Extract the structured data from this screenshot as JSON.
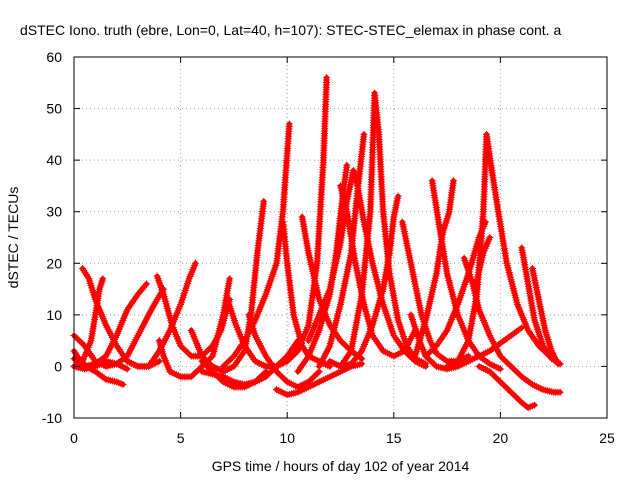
{
  "chart_data": {
    "type": "scatter",
    "title": "dSTEC Iono. truth (ebre, Lon=0, Lat=40, h=107): STEC-STEC_elemax in phase cont. a",
    "xlabel": "GPS time / hours of day 102 of year 2014",
    "ylabel": "dSTEC  / TECUs",
    "xlim": [
      0,
      25
    ],
    "ylim": [
      -10,
      60
    ],
    "xticks": [
      0,
      5,
      10,
      15,
      20,
      25
    ],
    "yticks": [
      -10,
      0,
      10,
      20,
      30,
      40,
      50,
      60
    ],
    "grid": true,
    "marker": "+",
    "color": "#ff0000",
    "series": [
      {
        "points": [
          [
            0.0,
            6
          ],
          [
            0.5,
            4
          ],
          [
            1.0,
            1
          ],
          [
            1.5,
            0
          ],
          [
            2.0,
            0.5
          ],
          [
            2.5,
            2
          ],
          [
            3.0,
            6
          ],
          [
            3.5,
            10
          ],
          [
            3.9,
            13
          ],
          [
            4.2,
            15
          ]
        ]
      },
      {
        "points": [
          [
            0.0,
            1.5
          ],
          [
            0.5,
            0
          ],
          [
            1.0,
            0.5
          ],
          [
            1.5,
            2
          ],
          [
            2.0,
            6
          ],
          [
            2.5,
            11
          ],
          [
            3.0,
            14
          ],
          [
            3.4,
            16
          ]
        ]
      },
      {
        "points": [
          [
            0.0,
            3
          ],
          [
            0.3,
            1
          ],
          [
            0.6,
            0
          ],
          [
            1.0,
            -1
          ],
          [
            1.5,
            -2.5
          ],
          [
            2.0,
            -3
          ],
          [
            2.3,
            -3.5
          ]
        ]
      },
      {
        "points": [
          [
            0.0,
            0
          ],
          [
            0.4,
            1
          ],
          [
            0.8,
            5
          ],
          [
            1.0,
            10
          ],
          [
            1.2,
            15
          ],
          [
            1.35,
            17
          ]
        ]
      },
      {
        "points": [
          [
            0.4,
            19
          ],
          [
            0.7,
            17
          ],
          [
            1.0,
            13
          ],
          [
            1.5,
            8
          ],
          [
            2.0,
            4
          ],
          [
            2.5,
            1
          ],
          [
            3.0,
            0
          ],
          [
            3.5,
            0
          ],
          [
            4.0,
            1
          ]
        ]
      },
      {
        "points": [
          [
            0.0,
            0
          ],
          [
            0.5,
            -0.5
          ],
          [
            1.0,
            0
          ],
          [
            1.5,
            1
          ],
          [
            2.0,
            0.5
          ],
          [
            2.5,
            -0.5
          ]
        ]
      },
      {
        "points": [
          [
            2.5,
            1
          ],
          [
            3.0,
            0
          ],
          [
            3.5,
            0
          ],
          [
            4.0,
            3
          ],
          [
            4.5,
            7
          ],
          [
            5.0,
            12
          ],
          [
            5.4,
            17
          ],
          [
            5.7,
            20
          ]
        ]
      },
      {
        "points": [
          [
            3.9,
            17.5
          ],
          [
            4.2,
            14
          ],
          [
            4.6,
            8
          ],
          [
            5.0,
            4
          ],
          [
            5.5,
            2
          ],
          [
            6.0,
            2
          ],
          [
            6.5,
            4
          ],
          [
            6.9,
            7
          ],
          [
            7.3,
            13
          ]
        ]
      },
      {
        "points": [
          [
            4.0,
            5
          ],
          [
            4.2,
            2
          ],
          [
            4.5,
            -1
          ],
          [
            5.0,
            -2
          ],
          [
            5.5,
            -2
          ],
          [
            6.0,
            0
          ],
          [
            6.5,
            2
          ],
          [
            7.0,
            10
          ],
          [
            7.3,
            17
          ]
        ]
      },
      {
        "points": [
          [
            5.5,
            7
          ],
          [
            6.0,
            2
          ],
          [
            6.5,
            0
          ],
          [
            7.0,
            -1
          ],
          [
            7.5,
            0
          ],
          [
            8.0,
            3
          ],
          [
            8.3,
            10
          ],
          [
            8.6,
            22
          ],
          [
            8.9,
            32
          ]
        ]
      },
      {
        "points": [
          [
            6.0,
            -1
          ],
          [
            6.5,
            -1.5
          ],
          [
            7.0,
            -2
          ],
          [
            7.5,
            -3
          ],
          [
            8.0,
            -3.5
          ],
          [
            8.5,
            -3
          ],
          [
            9.0,
            -1
          ]
        ]
      },
      {
        "points": [
          [
            6.0,
            1
          ],
          [
            6.5,
            -1
          ],
          [
            7.0,
            -3
          ],
          [
            7.5,
            -4
          ],
          [
            8.0,
            -4
          ],
          [
            8.5,
            -3
          ],
          [
            9.0,
            -2
          ],
          [
            9.5,
            0
          ],
          [
            10.0,
            2
          ],
          [
            10.5,
            5
          ]
        ]
      },
      {
        "points": [
          [
            7.2,
            13
          ],
          [
            7.6,
            8
          ],
          [
            8.0,
            4
          ],
          [
            8.5,
            1
          ],
          [
            9.0,
            0
          ],
          [
            9.5,
            0
          ],
          [
            10.0,
            2
          ],
          [
            10.5,
            4
          ]
        ]
      },
      {
        "points": [
          [
            7.0,
            0
          ],
          [
            7.5,
            2
          ],
          [
            8.0,
            5
          ],
          [
            8.5,
            9
          ],
          [
            9.0,
            14
          ],
          [
            9.5,
            20
          ],
          [
            9.8,
            30
          ],
          [
            10.1,
            47
          ]
        ]
      },
      {
        "points": [
          [
            8.2,
            10
          ],
          [
            8.5,
            6
          ],
          [
            9.0,
            2
          ],
          [
            9.5,
            -1
          ],
          [
            10.0,
            -3
          ],
          [
            10.5,
            -4
          ],
          [
            11.0,
            -3
          ],
          [
            11.5,
            -1
          ]
        ]
      },
      {
        "points": [
          [
            9.5,
            -4.5
          ],
          [
            10.0,
            -5.5
          ],
          [
            10.5,
            -5
          ],
          [
            11.0,
            -4
          ],
          [
            11.5,
            -3
          ],
          [
            12.0,
            -2
          ],
          [
            12.5,
            -1
          ],
          [
            13.0,
            0
          ],
          [
            13.5,
            0.5
          ]
        ]
      },
      {
        "points": [
          [
            9.8,
            28
          ],
          [
            10.0,
            20
          ],
          [
            10.3,
            10
          ],
          [
            10.7,
            4
          ],
          [
            11.0,
            2
          ],
          [
            11.5,
            1
          ],
          [
            12.0,
            0
          ]
        ]
      },
      {
        "points": [
          [
            9.0,
            0
          ],
          [
            9.5,
            0
          ],
          [
            10.0,
            1
          ],
          [
            10.5,
            3
          ],
          [
            11.0,
            8
          ],
          [
            11.4,
            20
          ],
          [
            11.7,
            40
          ],
          [
            11.85,
            56
          ]
        ]
      },
      {
        "points": [
          [
            10.5,
            -1
          ],
          [
            11.0,
            2
          ],
          [
            11.5,
            7
          ],
          [
            12.0,
            14
          ],
          [
            12.3,
            22
          ],
          [
            12.6,
            33
          ],
          [
            12.8,
            39
          ]
        ]
      },
      {
        "points": [
          [
            10.7,
            29
          ],
          [
            11.0,
            22
          ],
          [
            11.5,
            13
          ],
          [
            12.0,
            8
          ],
          [
            12.5,
            5
          ],
          [
            13.0,
            3
          ],
          [
            13.5,
            1.5
          ]
        ]
      },
      {
        "points": [
          [
            11.0,
            5
          ],
          [
            11.5,
            10
          ],
          [
            12.0,
            15
          ],
          [
            12.5,
            24
          ],
          [
            12.8,
            32
          ],
          [
            13.1,
            38
          ],
          [
            13.3,
            35
          ],
          [
            13.6,
            28
          ],
          [
            14.0,
            20
          ],
          [
            14.5,
            12
          ],
          [
            15.0,
            6
          ],
          [
            15.5,
            3
          ],
          [
            16.0,
            1
          ],
          [
            16.5,
            0
          ]
        ]
      },
      {
        "points": [
          [
            11.5,
            0
          ],
          [
            12.0,
            4
          ],
          [
            12.5,
            12
          ],
          [
            13.0,
            22
          ],
          [
            13.3,
            34
          ],
          [
            13.6,
            45
          ]
        ]
      },
      {
        "points": [
          [
            12.5,
            35
          ],
          [
            12.8,
            30
          ],
          [
            13.2,
            20
          ],
          [
            13.6,
            12
          ],
          [
            14.0,
            6
          ],
          [
            14.5,
            3
          ],
          [
            15.0,
            2
          ],
          [
            15.5,
            3
          ],
          [
            16.0,
            7
          ]
        ]
      },
      {
        "points": [
          [
            12.0,
            1
          ],
          [
            12.5,
            0
          ],
          [
            13.0,
            0.5
          ],
          [
            13.5,
            3
          ],
          [
            14.0,
            8
          ],
          [
            14.5,
            15
          ],
          [
            14.8,
            22
          ],
          [
            15.0,
            29
          ],
          [
            15.2,
            33
          ]
        ]
      },
      {
        "points": [
          [
            12.5,
            0
          ],
          [
            13.0,
            3
          ],
          [
            13.5,
            14
          ],
          [
            13.9,
            30
          ],
          [
            14.1,
            53
          ],
          [
            14.3,
            45
          ],
          [
            14.5,
            30
          ],
          [
            14.8,
            18
          ],
          [
            15.2,
            9
          ],
          [
            15.6,
            4
          ],
          [
            16.0,
            1.5
          ],
          [
            16.5,
            0.5
          ]
        ]
      },
      {
        "points": [
          [
            15.4,
            28
          ],
          [
            15.7,
            22
          ],
          [
            16.0,
            16
          ],
          [
            16.3,
            10
          ],
          [
            16.7,
            5
          ],
          [
            17.0,
            2.5
          ],
          [
            17.5,
            1
          ],
          [
            18.0,
            1
          ],
          [
            18.5,
            2
          ]
        ]
      },
      {
        "points": [
          [
            15.8,
            10
          ],
          [
            16.2,
            5
          ],
          [
            16.5,
            2
          ],
          [
            17.0,
            0
          ],
          [
            17.5,
            -0.5
          ],
          [
            18.0,
            0
          ],
          [
            18.5,
            1
          ],
          [
            19.0,
            2
          ],
          [
            19.5,
            3
          ],
          [
            20.0,
            4.5
          ],
          [
            20.5,
            6
          ],
          [
            21.0,
            7.5
          ]
        ]
      },
      {
        "points": [
          [
            16.0,
            2
          ],
          [
            16.5,
            9
          ],
          [
            17.0,
            18
          ],
          [
            17.3,
            26
          ],
          [
            17.6,
            30
          ],
          [
            17.8,
            36
          ]
        ]
      },
      {
        "points": [
          [
            16.8,
            36
          ],
          [
            17.1,
            28
          ],
          [
            17.5,
            18
          ],
          [
            18.0,
            10
          ],
          [
            18.5,
            5
          ],
          [
            19.0,
            2
          ],
          [
            19.5,
            0.5
          ],
          [
            20.0,
            -0.5
          ]
        ]
      },
      {
        "points": [
          [
            16.5,
            2
          ],
          [
            17.0,
            4
          ],
          [
            17.5,
            7
          ],
          [
            18.0,
            12
          ],
          [
            18.5,
            18
          ],
          [
            19.0,
            25
          ],
          [
            19.3,
            28
          ]
        ]
      },
      {
        "points": [
          [
            18.3,
            21
          ],
          [
            18.7,
            16
          ],
          [
            19.0,
            11
          ],
          [
            19.5,
            6
          ],
          [
            20.0,
            2
          ],
          [
            20.5,
            0
          ],
          [
            21.0,
            -2
          ],
          [
            21.5,
            -3.5
          ],
          [
            22.0,
            -4.5
          ],
          [
            22.5,
            -5
          ],
          [
            22.8,
            -5
          ]
        ]
      },
      {
        "points": [
          [
            17.5,
            0
          ],
          [
            18.0,
            1
          ],
          [
            18.5,
            5
          ],
          [
            18.9,
            14
          ],
          [
            19.2,
            30
          ],
          [
            19.35,
            45
          ],
          [
            19.6,
            38
          ],
          [
            19.9,
            30
          ],
          [
            20.3,
            20
          ],
          [
            20.8,
            12
          ],
          [
            21.3,
            7
          ],
          [
            21.8,
            4
          ],
          [
            22.3,
            2
          ],
          [
            22.8,
            0.5
          ]
        ]
      },
      {
        "points": [
          [
            19.0,
            0
          ],
          [
            19.5,
            -1
          ],
          [
            20.0,
            -3
          ],
          [
            20.5,
            -5
          ],
          [
            21.0,
            -7
          ],
          [
            21.3,
            -8
          ],
          [
            21.6,
            -7.5
          ]
        ]
      },
      {
        "points": [
          [
            18.8,
            15
          ],
          [
            19.2,
            22
          ],
          [
            19.5,
            25
          ]
        ]
      },
      {
        "points": [
          [
            21.0,
            23
          ],
          [
            21.3,
            16
          ],
          [
            21.6,
            9
          ],
          [
            22.0,
            4
          ],
          [
            22.4,
            1.5
          ],
          [
            22.8,
            0.5
          ]
        ]
      },
      {
        "points": [
          [
            21.5,
            19
          ],
          [
            21.8,
            13
          ],
          [
            22.1,
            7
          ],
          [
            22.4,
            3
          ],
          [
            22.7,
            0.5
          ]
        ]
      }
    ]
  }
}
